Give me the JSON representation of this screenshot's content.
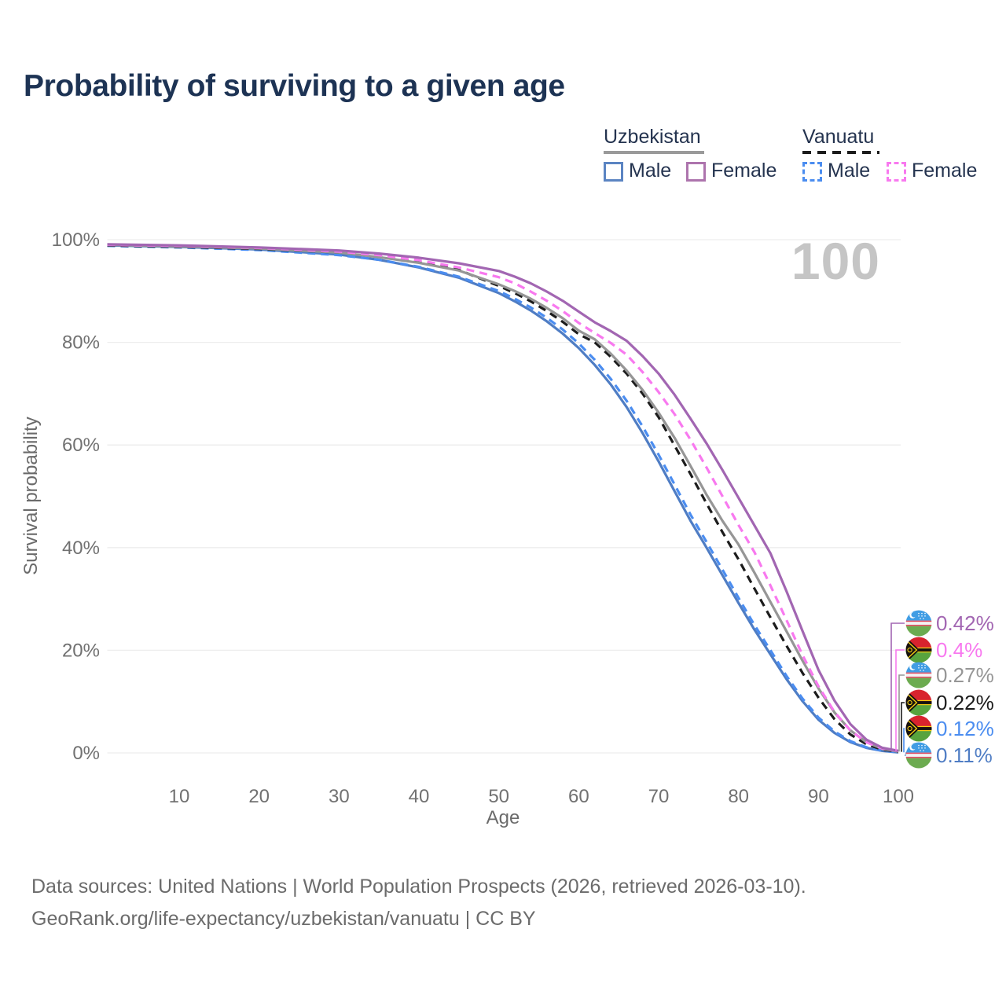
{
  "title": "Probability of surviving to a given age",
  "watermark_age": "100",
  "legend": {
    "groups": [
      {
        "label": "Uzbekistan",
        "line_style": "solid",
        "line_color": "#9a9a9a",
        "items": [
          {
            "label": "Male",
            "swatch_style": "solid",
            "swatch_color": "#5b84c2"
          },
          {
            "label": "Female",
            "swatch_style": "solid",
            "swatch_color": "#ad74ad"
          }
        ]
      },
      {
        "label": "Vanuatu",
        "line_style": "dashed",
        "line_color": "#1c1c1c",
        "items": [
          {
            "label": "Male",
            "swatch_style": "dashed",
            "swatch_color": "#4b8df0"
          },
          {
            "label": "Female",
            "swatch_style": "dashed",
            "swatch_color": "#f879ef"
          }
        ]
      }
    ]
  },
  "chart_data": {
    "type": "line",
    "title": "Probability of surviving to a given age",
    "xlabel": "Age",
    "ylabel": "Survival probability",
    "xlim": [
      1,
      100
    ],
    "ylim": [
      0,
      100
    ],
    "grid": "horizontal",
    "legend_position": "top-right",
    "x_ticks": [
      10,
      20,
      30,
      40,
      50,
      60,
      70,
      80,
      90,
      100
    ],
    "y_ticks": [
      {
        "value": 0,
        "label": "0%"
      },
      {
        "value": 20,
        "label": "20%"
      },
      {
        "value": 40,
        "label": "40%"
      },
      {
        "value": 60,
        "label": "60%"
      },
      {
        "value": 80,
        "label": "80%"
      },
      {
        "value": 100,
        "label": "100%"
      }
    ],
    "series": [
      {
        "name": "Uzbekistan Female",
        "country": "Uzbekistan",
        "sex": "Female",
        "color": "#a266b2",
        "dash": "solid",
        "flag": "uzbekistan",
        "end_label": "0.42%",
        "points": [
          [
            1,
            99.1
          ],
          [
            10,
            98.9
          ],
          [
            20,
            98.5
          ],
          [
            30,
            97.9
          ],
          [
            35,
            97.3
          ],
          [
            40,
            96.5
          ],
          [
            45,
            95.4
          ],
          [
            50,
            93.9
          ],
          [
            52,
            92.8
          ],
          [
            54,
            91.5
          ],
          [
            56,
            89.9
          ],
          [
            58,
            88.1
          ],
          [
            60,
            86.0
          ],
          [
            62,
            83.9
          ],
          [
            64,
            82.2
          ],
          [
            66,
            80.3
          ],
          [
            68,
            77.3
          ],
          [
            70,
            73.9
          ],
          [
            72,
            69.8
          ],
          [
            74,
            65.1
          ],
          [
            76,
            60.3
          ],
          [
            78,
            55.1
          ],
          [
            80,
            49.7
          ],
          [
            82,
            44.3
          ],
          [
            84,
            38.9
          ],
          [
            86,
            31.5
          ],
          [
            88,
            23.8
          ],
          [
            90,
            16.2
          ],
          [
            92,
            10.2
          ],
          [
            94,
            5.6
          ],
          [
            96,
            2.6
          ],
          [
            98,
            1.0
          ],
          [
            100,
            0.42
          ]
        ]
      },
      {
        "name": "Vanuatu Female",
        "country": "Vanuatu",
        "sex": "Female",
        "color": "#f879ef",
        "dash": "dashed",
        "flag": "vanuatu",
        "end_label": "0.4%",
        "points": [
          [
            1,
            99.0
          ],
          [
            10,
            98.8
          ],
          [
            20,
            98.4
          ],
          [
            30,
            97.7
          ],
          [
            35,
            97.0
          ],
          [
            40,
            96.0
          ],
          [
            45,
            94.6
          ],
          [
            50,
            92.7
          ],
          [
            52,
            91.5
          ],
          [
            54,
            89.9
          ],
          [
            56,
            88.1
          ],
          [
            58,
            86.1
          ],
          [
            60,
            83.8
          ],
          [
            62,
            81.8
          ],
          [
            64,
            79.9
          ],
          [
            66,
            77.6
          ],
          [
            68,
            74.2
          ],
          [
            70,
            70.3
          ],
          [
            72,
            66.0
          ],
          [
            74,
            61.0
          ],
          [
            76,
            55.6
          ],
          [
            78,
            50.0
          ],
          [
            80,
            44.4
          ],
          [
            82,
            39.1
          ],
          [
            84,
            32.6
          ],
          [
            86,
            25.9
          ],
          [
            88,
            19.1
          ],
          [
            90,
            13.0
          ],
          [
            92,
            8.0
          ],
          [
            94,
            4.4
          ],
          [
            96,
            2.1
          ],
          [
            98,
            0.85
          ],
          [
            100,
            0.4
          ]
        ]
      },
      {
        "name": "Uzbekistan (both sexes)",
        "country": "Uzbekistan",
        "sex": "All",
        "color": "#969696",
        "dash": "solid",
        "flag": "uzbekistan",
        "end_label": "0.27%",
        "points": [
          [
            1,
            99.0
          ],
          [
            10,
            98.7
          ],
          [
            20,
            98.3
          ],
          [
            30,
            97.5
          ],
          [
            35,
            96.6
          ],
          [
            40,
            95.5
          ],
          [
            45,
            94.0
          ],
          [
            50,
            91.3
          ],
          [
            52,
            90.0
          ],
          [
            54,
            88.5
          ],
          [
            56,
            86.7
          ],
          [
            58,
            84.7
          ],
          [
            60,
            82.3
          ],
          [
            62,
            80.6
          ],
          [
            64,
            77.8
          ],
          [
            66,
            74.5
          ],
          [
            68,
            70.7
          ],
          [
            70,
            66.3
          ],
          [
            72,
            61.4
          ],
          [
            74,
            55.9
          ],
          [
            76,
            50.3
          ],
          [
            78,
            45.2
          ],
          [
            80,
            40.6
          ],
          [
            82,
            35.1
          ],
          [
            84,
            29.4
          ],
          [
            86,
            23.7
          ],
          [
            88,
            18.0
          ],
          [
            90,
            12.6
          ],
          [
            92,
            7.9
          ],
          [
            94,
            4.4
          ],
          [
            96,
            2.1
          ],
          [
            98,
            0.8
          ],
          [
            100,
            0.27
          ]
        ]
      },
      {
        "name": "Vanuatu (both sexes)",
        "country": "Vanuatu",
        "sex": "All",
        "color": "#1c1c1c",
        "dash": "dashed",
        "flag": "vanuatu",
        "end_label": "0.22%",
        "points": [
          [
            1,
            98.9
          ],
          [
            10,
            98.6
          ],
          [
            20,
            98.2
          ],
          [
            30,
            97.5
          ],
          [
            35,
            96.7
          ],
          [
            40,
            95.6
          ],
          [
            45,
            94.1
          ],
          [
            50,
            91.0
          ],
          [
            52,
            89.6
          ],
          [
            54,
            88.0
          ],
          [
            56,
            86.1
          ],
          [
            58,
            84.0
          ],
          [
            60,
            81.6
          ],
          [
            62,
            80.0
          ],
          [
            64,
            77.2
          ],
          [
            66,
            73.9
          ],
          [
            68,
            70.0
          ],
          [
            70,
            65.4
          ],
          [
            72,
            59.9
          ],
          [
            74,
            54.3
          ],
          [
            76,
            48.6
          ],
          [
            78,
            43.0
          ],
          [
            80,
            37.7
          ],
          [
            82,
            32.0
          ],
          [
            84,
            26.4
          ],
          [
            86,
            20.9
          ],
          [
            88,
            15.6
          ],
          [
            90,
            10.8
          ],
          [
            92,
            6.6
          ],
          [
            94,
            3.6
          ],
          [
            96,
            1.7
          ],
          [
            98,
            0.65
          ],
          [
            100,
            0.22
          ]
        ]
      },
      {
        "name": "Vanuatu Male",
        "country": "Vanuatu",
        "sex": "Male",
        "color": "#4b8df0",
        "dash": "dashed",
        "flag": "vanuatu",
        "end_label": "0.12%",
        "points": [
          [
            1,
            98.8
          ],
          [
            10,
            98.5
          ],
          [
            20,
            98.0
          ],
          [
            30,
            97.0
          ],
          [
            35,
            96.1
          ],
          [
            40,
            94.7
          ],
          [
            45,
            92.8
          ],
          [
            50,
            90.0
          ],
          [
            52,
            88.5
          ],
          [
            54,
            86.8
          ],
          [
            56,
            84.8
          ],
          [
            58,
            82.5
          ],
          [
            60,
            79.8
          ],
          [
            62,
            76.6
          ],
          [
            64,
            72.9
          ],
          [
            66,
            68.6
          ],
          [
            68,
            63.6
          ],
          [
            70,
            58.1
          ],
          [
            72,
            52.3
          ],
          [
            74,
            46.4
          ],
          [
            76,
            41.1
          ],
          [
            78,
            35.7
          ],
          [
            80,
            30.2
          ],
          [
            82,
            24.9
          ],
          [
            84,
            20.0
          ],
          [
            86,
            15.0
          ],
          [
            88,
            10.6
          ],
          [
            90,
            6.9
          ],
          [
            92,
            4.2
          ],
          [
            94,
            2.3
          ],
          [
            96,
            1.1
          ],
          [
            98,
            0.45
          ],
          [
            100,
            0.12
          ]
        ]
      },
      {
        "name": "Uzbekistan Male",
        "country": "Uzbekistan",
        "sex": "Male",
        "color": "#4f7dc4",
        "dash": "solid",
        "flag": "uzbekistan",
        "end_label": "0.11%",
        "points": [
          [
            1,
            98.9
          ],
          [
            10,
            98.6
          ],
          [
            20,
            98.1
          ],
          [
            30,
            97.1
          ],
          [
            35,
            96.1
          ],
          [
            40,
            94.6
          ],
          [
            45,
            92.6
          ],
          [
            50,
            89.6
          ],
          [
            52,
            88.0
          ],
          [
            54,
            86.2
          ],
          [
            56,
            84.1
          ],
          [
            58,
            81.7
          ],
          [
            60,
            78.9
          ],
          [
            62,
            75.6
          ],
          [
            64,
            71.8
          ],
          [
            66,
            67.4
          ],
          [
            68,
            62.3
          ],
          [
            70,
            56.8
          ],
          [
            72,
            51.0
          ],
          [
            74,
            45.2
          ],
          [
            76,
            40.0
          ],
          [
            78,
            34.6
          ],
          [
            80,
            29.2
          ],
          [
            82,
            24.0
          ],
          [
            84,
            19.2
          ],
          [
            86,
            14.4
          ],
          [
            88,
            10.1
          ],
          [
            90,
            6.5
          ],
          [
            92,
            3.9
          ],
          [
            94,
            2.1
          ],
          [
            96,
            1.0
          ],
          [
            98,
            0.4
          ],
          [
            100,
            0.11
          ]
        ]
      }
    ]
  },
  "footer": {
    "line1": "Data sources: United Nations | World Population Prospects (2026, retrieved 2026-03-10).",
    "line2": "GeoRank.org/life-expectancy/uzbekistan/vanuatu | CC BY"
  }
}
